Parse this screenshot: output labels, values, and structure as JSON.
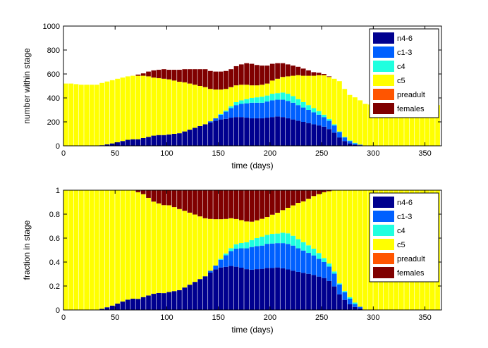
{
  "chart_data": [
    {
      "type": "bar",
      "stacked": true,
      "xlabel": "time (days)",
      "ylabel": "number within stage",
      "xlim": [
        0,
        366
      ],
      "ylim": [
        0,
        1000
      ],
      "xticks": [
        "0",
        "50",
        "100",
        "150",
        "200",
        "250",
        "300",
        "350"
      ],
      "yticks": [
        "0",
        "200",
        "400",
        "600",
        "800",
        "1000"
      ],
      "legend_position": "top-right",
      "bin_width_days": 5,
      "x": [
        0,
        5,
        10,
        15,
        20,
        25,
        30,
        35,
        40,
        45,
        50,
        55,
        60,
        65,
        70,
        75,
        80,
        85,
        90,
        95,
        100,
        105,
        110,
        115,
        120,
        125,
        130,
        135,
        140,
        145,
        150,
        155,
        160,
        165,
        170,
        175,
        180,
        185,
        190,
        195,
        200,
        205,
        210,
        215,
        220,
        225,
        230,
        235,
        240,
        245,
        250,
        255,
        260,
        265,
        270,
        275,
        280,
        285,
        290,
        295,
        300,
        305,
        310,
        315,
        320,
        325,
        330,
        335,
        340,
        345,
        350,
        355,
        360
      ],
      "series": [
        {
          "name": "n4-6",
          "color": "#00008f",
          "values": [
            0,
            0,
            0,
            0,
            0,
            0,
            0,
            5,
            12,
            20,
            30,
            40,
            50,
            55,
            55,
            65,
            75,
            85,
            90,
            90,
            95,
            100,
            105,
            120,
            135,
            150,
            165,
            180,
            195,
            210,
            220,
            225,
            235,
            240,
            240,
            235,
            230,
            230,
            230,
            235,
            240,
            245,
            240,
            230,
            220,
            210,
            200,
            190,
            180,
            170,
            160,
            140,
            110,
            70,
            40,
            20,
            10,
            5,
            0,
            0,
            0,
            0,
            0,
            0,
            0,
            0,
            0,
            0,
            0,
            0,
            0,
            0,
            0
          ]
        },
        {
          "name": "c1-3",
          "color": "#0060ff",
          "values": [
            0,
            0,
            0,
            0,
            0,
            0,
            0,
            0,
            0,
            0,
            0,
            0,
            0,
            0,
            0,
            0,
            0,
            0,
            0,
            0,
            0,
            0,
            0,
            0,
            0,
            0,
            0,
            0,
            10,
            20,
            40,
            60,
            80,
            100,
            110,
            120,
            130,
            130,
            130,
            135,
            140,
            140,
            145,
            145,
            140,
            130,
            120,
            110,
            100,
            90,
            80,
            70,
            60,
            45,
            30,
            20,
            10,
            5,
            0,
            0,
            0,
            0,
            0,
            0,
            0,
            0,
            0,
            0,
            0,
            0,
            0,
            0,
            0
          ]
        },
        {
          "name": "c4",
          "color": "#20ffdf",
          "values": [
            0,
            0,
            0,
            0,
            0,
            0,
            0,
            0,
            0,
            0,
            0,
            0,
            0,
            0,
            0,
            0,
            0,
            0,
            0,
            0,
            0,
            0,
            0,
            0,
            0,
            0,
            0,
            0,
            0,
            0,
            5,
            10,
            15,
            25,
            30,
            35,
            40,
            45,
            50,
            50,
            55,
            55,
            60,
            60,
            55,
            50,
            45,
            40,
            35,
            30,
            20,
            15,
            10,
            5,
            5,
            5,
            5,
            0,
            0,
            0,
            0,
            0,
            0,
            0,
            0,
            0,
            0,
            0,
            0,
            0,
            0,
            0,
            0
          ]
        },
        {
          "name": "c5",
          "color": "#ffff00",
          "values": [
            520,
            520,
            515,
            510,
            510,
            510,
            510,
            520,
            525,
            528,
            530,
            530,
            530,
            530,
            530,
            520,
            505,
            485,
            475,
            470,
            460,
            445,
            430,
            410,
            385,
            360,
            335,
            310,
            270,
            240,
            205,
            180,
            160,
            140,
            130,
            120,
            105,
            100,
            100,
            100,
            110,
            120,
            130,
            145,
            170,
            200,
            220,
            245,
            270,
            300,
            330,
            350,
            380,
            420,
            400,
            380,
            380,
            370,
            350,
            345,
            340,
            340,
            345,
            340,
            340,
            340,
            340,
            340,
            340,
            340,
            340,
            340,
            340
          ]
        },
        {
          "name": "preadult",
          "color": "#ff5500",
          "values": [
            0,
            0,
            0,
            0,
            0,
            0,
            0,
            0,
            0,
            0,
            0,
            0,
            0,
            0,
            0,
            0,
            0,
            0,
            0,
            0,
            0,
            0,
            0,
            0,
            0,
            0,
            0,
            0,
            0,
            0,
            0,
            0,
            0,
            0,
            0,
            0,
            0,
            0,
            0,
            0,
            0,
            0,
            0,
            0,
            0,
            0,
            0,
            0,
            0,
            0,
            0,
            0,
            0,
            0,
            0,
            0,
            0,
            0,
            0,
            0,
            0,
            0,
            0,
            0,
            0,
            0,
            0,
            0,
            0,
            0,
            0,
            0,
            0
          ]
        },
        {
          "name": "females",
          "color": "#800000",
          "values": [
            0,
            0,
            0,
            0,
            0,
            0,
            0,
            0,
            0,
            0,
            0,
            0,
            0,
            0,
            10,
            20,
            40,
            60,
            70,
            80,
            80,
            90,
            100,
            110,
            120,
            130,
            140,
            150,
            150,
            150,
            150,
            150,
            150,
            160,
            170,
            180,
            180,
            170,
            160,
            150,
            140,
            130,
            115,
            100,
            85,
            70,
            60,
            45,
            30,
            20,
            10,
            5,
            0,
            0,
            0,
            0,
            0,
            0,
            0,
            0,
            0,
            0,
            0,
            0,
            0,
            0,
            0,
            0,
            0,
            0,
            0,
            0,
            0
          ]
        }
      ]
    },
    {
      "type": "bar",
      "stacked": true,
      "xlabel": "time (days)",
      "ylabel": "fraction in stage",
      "xlim": [
        0,
        366
      ],
      "ylim": [
        0,
        1
      ],
      "xticks": [
        "0",
        "50",
        "100",
        "150",
        "200",
        "250",
        "300",
        "350"
      ],
      "yticks": [
        "0",
        "0.2",
        "0.4",
        "0.6",
        "0.8",
        "1"
      ],
      "legend_position": "top-right",
      "bin_width_days": 5,
      "normalized_from_panel": 0
    }
  ],
  "legend": [
    "n4-6",
    "c1-3",
    "c4",
    "c5",
    "preadult",
    "females"
  ]
}
